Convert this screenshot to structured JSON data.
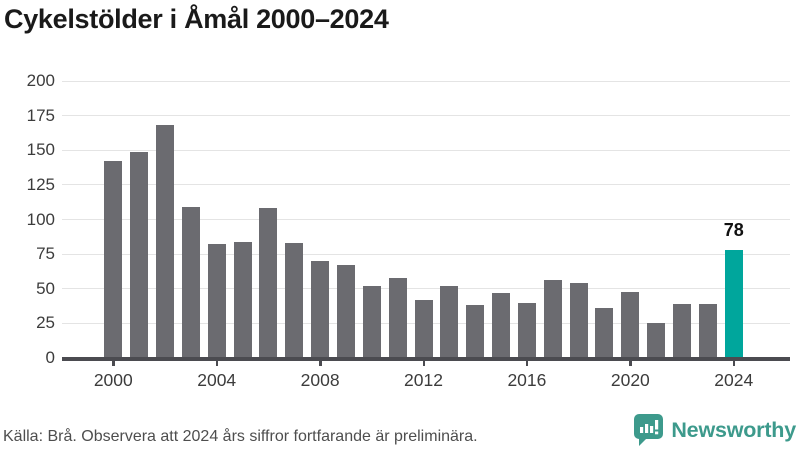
{
  "title": "Cykelstölder i Åmål 2000–2024",
  "source_note": "Källa: Brå. Observera att 2024 års siffror fortfarande är preliminära.",
  "brand": {
    "name": "Newsworthy",
    "icon": "bar-chart-speech-bubble-icon",
    "color": "#3d9a8c"
  },
  "colors": {
    "bar": "#6b6b70",
    "highlight": "#00a69c",
    "grid": "#e4e4e4",
    "axis": "#4b4b50",
    "title": "#1a1a1a",
    "tick_label": "#3c3c3c",
    "source": "#4e4e4e"
  },
  "chart_data": {
    "type": "bar",
    "title": "Cykelstölder i Åmål 2000–2024",
    "xlabel": "",
    "ylabel": "",
    "x": [
      2000,
      2001,
      2002,
      2003,
      2004,
      2005,
      2006,
      2007,
      2008,
      2009,
      2010,
      2011,
      2012,
      2013,
      2014,
      2015,
      2016,
      2017,
      2018,
      2019,
      2020,
      2021,
      2022,
      2023,
      2024
    ],
    "values": [
      142,
      149,
      168,
      109,
      82,
      84,
      108,
      83,
      70,
      67,
      52,
      58,
      42,
      52,
      38,
      47,
      40,
      56,
      54,
      36,
      48,
      25,
      39,
      39,
      78
    ],
    "highlight_year": 2024,
    "highlight_label": "78",
    "ylim": [
      0,
      200
    ],
    "yticks": [
      0,
      25,
      50,
      75,
      100,
      125,
      150,
      175,
      200
    ],
    "xticks": [
      2000,
      2004,
      2008,
      2012,
      2016,
      2020,
      2024
    ],
    "grid": "horizontal",
    "legend": "none"
  }
}
